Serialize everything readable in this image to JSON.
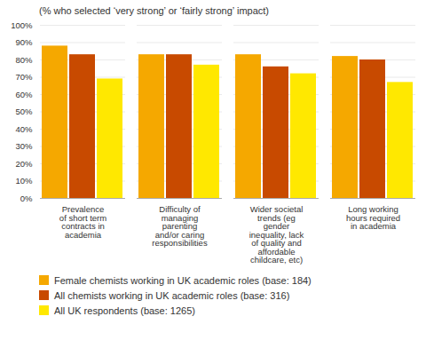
{
  "chart_data": {
    "type": "bar",
    "subtitle": "(% who selected ‘very strong’ or ‘fairly strong’ impact)",
    "categories": [
      "Prevalence\nof short term\ncontracts in\nacademia",
      "Difficulty of\nmanaging\nparenting\nand/or caring\nresponsibilities",
      "Wider societal\ntrends (eg\ngender\ninequality, lack\nof quality and\naffordable\nchildcare, etc)",
      "Long working\nhours required\nin academia"
    ],
    "series": [
      {
        "name": "Female chemists working in UK academic roles (base: 184)",
        "color": "#F5A800",
        "values": [
          88,
          83,
          83,
          82
        ]
      },
      {
        "name": "All chemists working in UK academic roles (base: 316)",
        "color": "#C84A00",
        "values": [
          83,
          83,
          76,
          80
        ]
      },
      {
        "name": "All UK respondents (base: 1265)",
        "color": "#FFE800",
        "values": [
          69,
          77,
          72,
          67
        ]
      }
    ],
    "ylim": [
      0,
      100
    ],
    "yticks": [
      {
        "value": 0,
        "label": "0%"
      },
      {
        "value": 10,
        "label": "10%"
      },
      {
        "value": 20,
        "label": "20%"
      },
      {
        "value": 30,
        "label": "30%"
      },
      {
        "value": 40,
        "label": "40%"
      },
      {
        "value": 50,
        "label": "50%"
      },
      {
        "value": 60,
        "label": "60%"
      },
      {
        "value": 70,
        "label": "70%"
      },
      {
        "value": 80,
        "label": "80%"
      },
      {
        "value": 90,
        "label": "90%"
      },
      {
        "value": 100,
        "label": "100%"
      }
    ],
    "grid": true,
    "legend": "bottom"
  }
}
